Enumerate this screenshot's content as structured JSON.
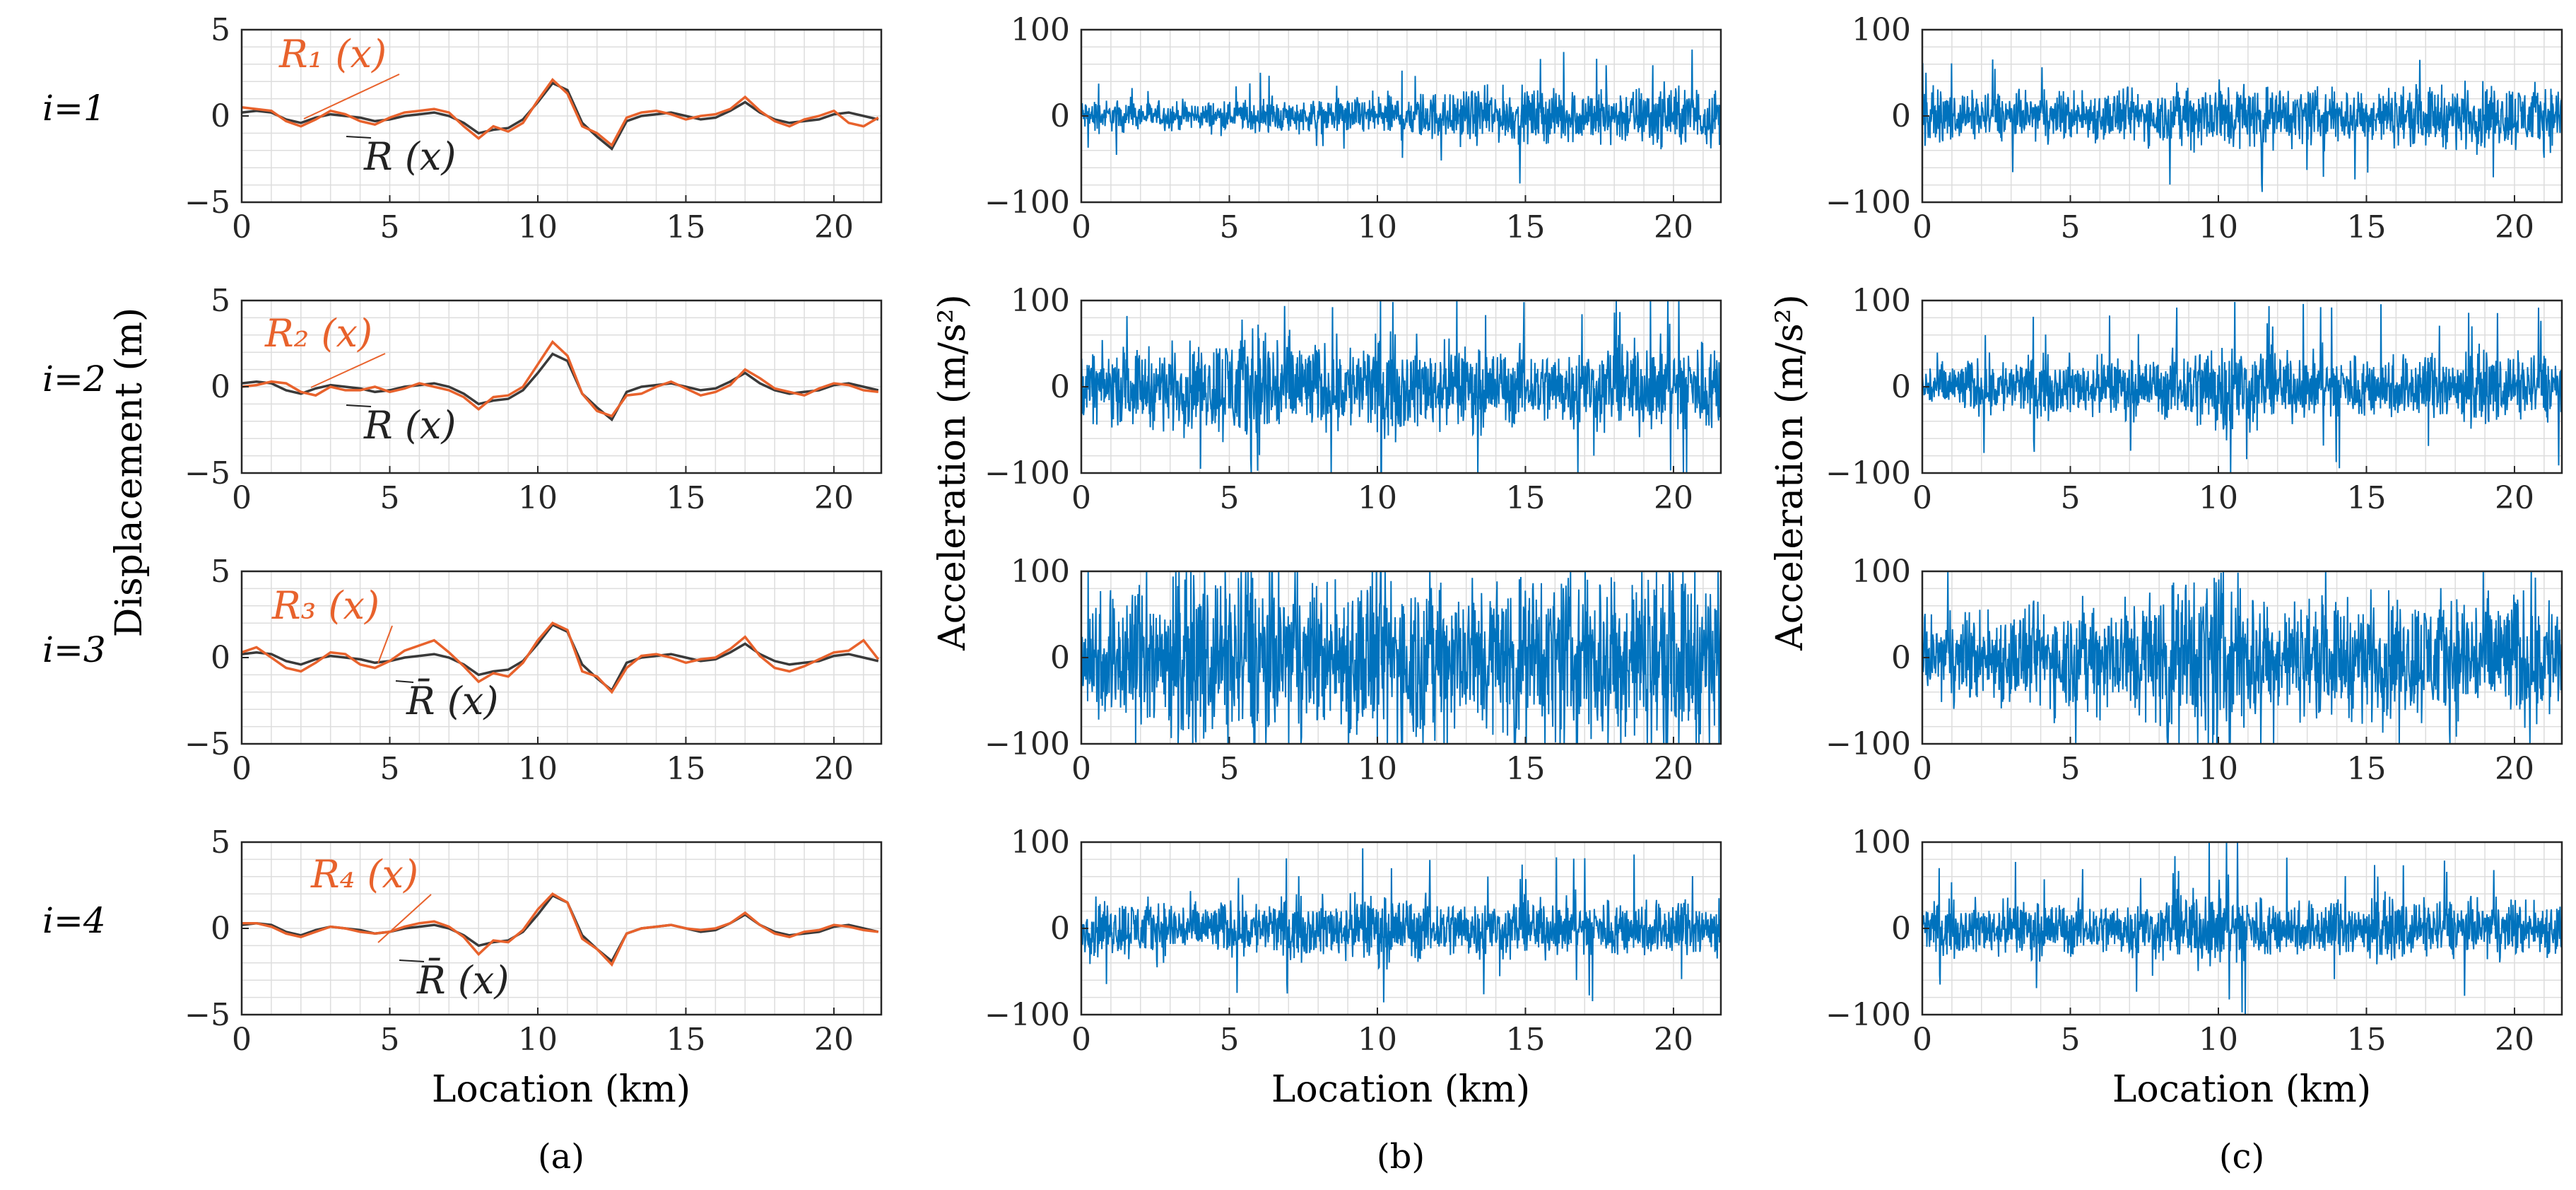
{
  "figure": {
    "row_labels": [
      "i=1",
      "i=2",
      "i=3",
      "i=4"
    ],
    "panel_labels": [
      "(a)",
      "(b)",
      "(c)"
    ],
    "ylabels": [
      "Displacement (m)",
      "Acceleration (m/s²)",
      "Acceleration (m/s²)"
    ],
    "xlabel": "Location (km)"
  },
  "colors": {
    "measured": "#E8622C",
    "reference": "#3A3A3A",
    "acceleration": "#0072BD",
    "grid": "#DDDDDD",
    "axis": "#262626"
  },
  "chart_data": [
    {
      "type": "line",
      "column": "a",
      "title": "",
      "xlabel": "Location (km)",
      "ylabel": "Displacement (m)",
      "xlim": [
        0,
        21.6
      ],
      "ylim": [
        -5,
        5
      ],
      "xticks": [
        0,
        5,
        10,
        15,
        20
      ],
      "yticks": [
        -5,
        0,
        5
      ],
      "grid": true,
      "x": [
        0,
        0.5,
        1,
        1.5,
        2,
        2.5,
        3,
        3.5,
        4,
        4.5,
        5,
        5.5,
        6,
        6.5,
        7,
        7.5,
        8,
        8.5,
        9,
        9.5,
        10,
        10.5,
        11,
        11.5,
        12,
        12.5,
        13,
        13.5,
        14,
        14.5,
        15,
        15.5,
        16,
        16.5,
        17,
        17.5,
        18,
        18.5,
        19,
        19.5,
        20,
        20.5,
        21,
        21.5
      ],
      "reference_values": [
        0.2,
        0.3,
        0.2,
        -0.2,
        -0.4,
        -0.1,
        0.1,
        0.0,
        -0.1,
        -0.3,
        -0.2,
        0.0,
        0.1,
        0.2,
        0.0,
        -0.4,
        -1.0,
        -0.8,
        -0.7,
        -0.2,
        0.8,
        1.9,
        1.5,
        -0.4,
        -1.2,
        -1.9,
        -0.3,
        0.0,
        0.1,
        0.2,
        0.0,
        -0.2,
        -0.1,
        0.3,
        0.8,
        0.2,
        -0.2,
        -0.4,
        -0.3,
        -0.2,
        0.1,
        0.2,
        0.0,
        -0.2
      ],
      "rows": [
        {
          "row": "i=1",
          "measured_label": "R1",
          "reference_label": "R",
          "measured_values": [
            0.5,
            0.4,
            0.3,
            -0.3,
            -0.6,
            -0.2,
            0.3,
            0.1,
            -0.3,
            -0.5,
            -0.1,
            0.2,
            0.3,
            0.4,
            0.2,
            -0.6,
            -1.3,
            -0.6,
            -0.9,
            -0.4,
            0.9,
            2.1,
            1.3,
            -0.6,
            -1.0,
            -1.7,
            -0.1,
            0.2,
            0.3,
            0.1,
            -0.2,
            0.0,
            0.1,
            0.4,
            1.1,
            0.3,
            -0.3,
            -0.6,
            -0.2,
            0.0,
            0.3,
            -0.4,
            -0.6,
            -0.1
          ]
        },
        {
          "row": "i=2",
          "measured_label": "R2",
          "reference_label": "R",
          "measured_values": [
            0.0,
            0.1,
            0.3,
            0.2,
            -0.3,
            -0.5,
            0.0,
            -0.2,
            -0.2,
            0.0,
            -0.3,
            -0.1,
            0.2,
            0.0,
            -0.2,
            -0.6,
            -1.3,
            -0.6,
            -0.5,
            0.0,
            1.3,
            2.6,
            1.8,
            -0.4,
            -1.4,
            -1.7,
            -0.5,
            -0.4,
            0.0,
            0.3,
            -0.1,
            -0.5,
            -0.3,
            0.1,
            1.0,
            0.5,
            -0.1,
            -0.3,
            -0.5,
            -0.1,
            0.2,
            0.1,
            -0.2,
            -0.3
          ]
        },
        {
          "row": "i=3",
          "measured_label": "R3",
          "reference_label": "R̄",
          "measured_values": [
            0.3,
            0.6,
            0.0,
            -0.6,
            -0.8,
            -0.3,
            0.3,
            0.2,
            -0.4,
            -0.6,
            -0.2,
            0.4,
            0.7,
            1.0,
            0.3,
            -0.5,
            -1.4,
            -0.9,
            -1.1,
            -0.3,
            1.0,
            2.0,
            1.6,
            -0.8,
            -1.1,
            -2.0,
            -0.6,
            0.1,
            0.2,
            0.0,
            -0.3,
            -0.1,
            0.0,
            0.5,
            1.2,
            0.1,
            -0.6,
            -0.8,
            -0.5,
            -0.1,
            0.3,
            0.4,
            1.0,
            -0.1
          ]
        },
        {
          "row": "i=4",
          "measured_label": "R4",
          "reference_label": "R̄",
          "measured_values": [
            0.3,
            0.3,
            0.1,
            -0.3,
            -0.5,
            -0.2,
            0.1,
            0.0,
            -0.2,
            -0.3,
            -0.2,
            0.1,
            0.3,
            0.4,
            0.1,
            -0.5,
            -1.5,
            -0.7,
            -0.8,
            -0.1,
            1.1,
            2.0,
            1.5,
            -0.6,
            -1.2,
            -2.1,
            -0.3,
            0.0,
            0.1,
            0.2,
            0.0,
            -0.1,
            0.0,
            0.3,
            0.9,
            0.2,
            -0.3,
            -0.5,
            -0.2,
            -0.1,
            0.2,
            0.1,
            -0.1,
            -0.2
          ]
        }
      ]
    },
    {
      "type": "line",
      "column": "b",
      "title": "",
      "xlabel": "Location (km)",
      "ylabel": "Acceleration (m/s²)",
      "xlim": [
        0,
        21.6
      ],
      "ylim": [
        -100,
        100
      ],
      "xticks": [
        0,
        5,
        10,
        15,
        20
      ],
      "yticks": [
        -100,
        0,
        100
      ],
      "grid": true,
      "envelope_x": [
        0,
        2,
        4,
        6,
        8,
        10,
        12,
        14,
        16,
        18,
        20,
        21.6
      ],
      "rows": [
        {
          "row": "i=1",
          "envelope": [
            18,
            15,
            15,
            18,
            16,
            22,
            26,
            28,
            28,
            30,
            32,
            30
          ]
        },
        {
          "row": "i=2",
          "envelope": [
            35,
            40,
            45,
            75,
            45,
            50,
            45,
            40,
            40,
            45,
            50,
            50
          ]
        },
        {
          "row": "i=3",
          "envelope": [
            70,
            75,
            85,
            100,
            75,
            100,
            90,
            85,
            90,
            100,
            95,
            90
          ]
        },
        {
          "row": "i=4",
          "envelope": [
            30,
            32,
            28,
            30,
            30,
            35,
            32,
            30,
            30,
            32,
            30,
            30
          ]
        }
      ]
    },
    {
      "type": "line",
      "column": "c",
      "title": "",
      "xlabel": "Location (km)",
      "ylabel": "Acceleration (m/s²)",
      "xlim": [
        0,
        21.6
      ],
      "ylim": [
        -100,
        100
      ],
      "xticks": [
        0,
        5,
        10,
        15,
        20
      ],
      "yticks": [
        -100,
        0,
        100
      ],
      "grid": true,
      "envelope_x": [
        0,
        2,
        4,
        6,
        8,
        10,
        12,
        14,
        16,
        18,
        20,
        21.6
      ],
      "rows": [
        {
          "row": "i=1",
          "envelope": [
            25,
            25,
            25,
            28,
            28,
            40,
            30,
            30,
            30,
            32,
            35,
            32
          ]
        },
        {
          "row": "i=2",
          "envelope": [
            25,
            30,
            30,
            30,
            30,
            55,
            35,
            35,
            35,
            35,
            35,
            35
          ]
        },
        {
          "row": "i=3",
          "envelope": [
            40,
            50,
            55,
            60,
            75,
            100,
            60,
            60,
            65,
            70,
            70,
            70
          ]
        },
        {
          "row": "i=4",
          "envelope": [
            25,
            28,
            28,
            28,
            30,
            45,
            30,
            30,
            30,
            30,
            30,
            30
          ]
        }
      ]
    }
  ]
}
